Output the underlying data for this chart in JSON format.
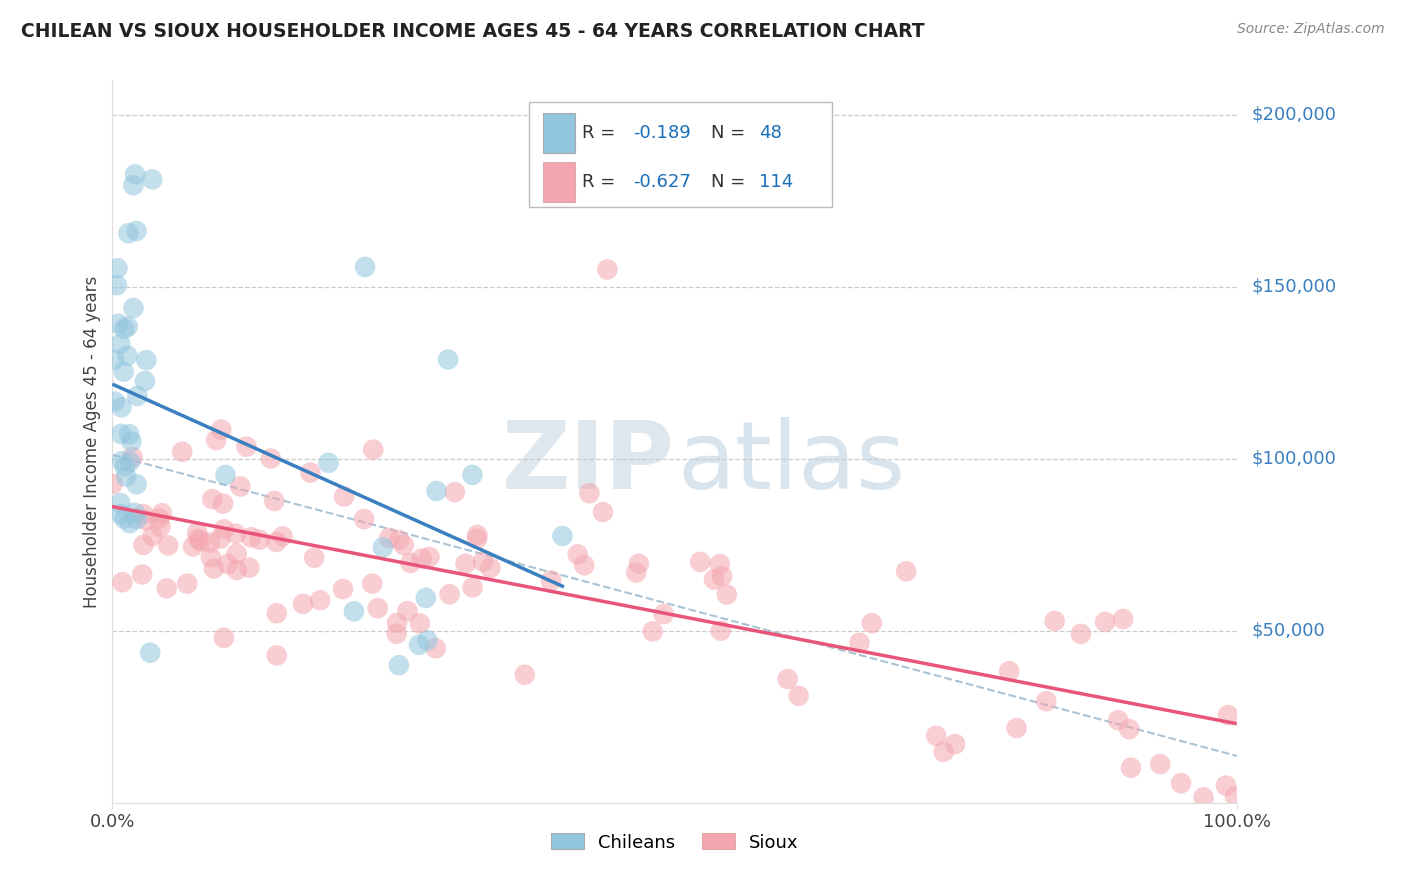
{
  "title": "CHILEAN VS SIOUX HOUSEHOLDER INCOME AGES 45 - 64 YEARS CORRELATION CHART",
  "source": "Source: ZipAtlas.com",
  "ylabel": "Householder Income Ages 45 - 64 years",
  "xmin": 0.0,
  "xmax": 1.0,
  "ymin": 0,
  "ymax": 210000,
  "yticks": [
    50000,
    100000,
    150000,
    200000
  ],
  "ytick_labels": [
    "$50,000",
    "$100,000",
    "$150,000",
    "$200,000"
  ],
  "xtick_labels": [
    "0.0%",
    "100.0%"
  ],
  "chilean_color": "#92c5de",
  "sioux_color": "#f4a6b0",
  "chilean_line_color": "#3a7fbf",
  "sioux_line_color": "#e8547a",
  "dashed_line_color": "#a0bcd0",
  "chilean_R": -0.189,
  "chilean_N": 48,
  "sioux_R": -0.627,
  "sioux_N": 114,
  "legend_R_color": "#1a6fba",
  "legend_N_color": "#1a6fba",
  "watermark_zip_color": "#d0dce8",
  "watermark_atlas_color": "#b8cfe0",
  "background_color": "#ffffff",
  "title_color": "#222222",
  "source_color": "#888888",
  "ylabel_color": "#444444",
  "grid_color": "#cccccc",
  "ytick_label_color": "#3a7fbf"
}
